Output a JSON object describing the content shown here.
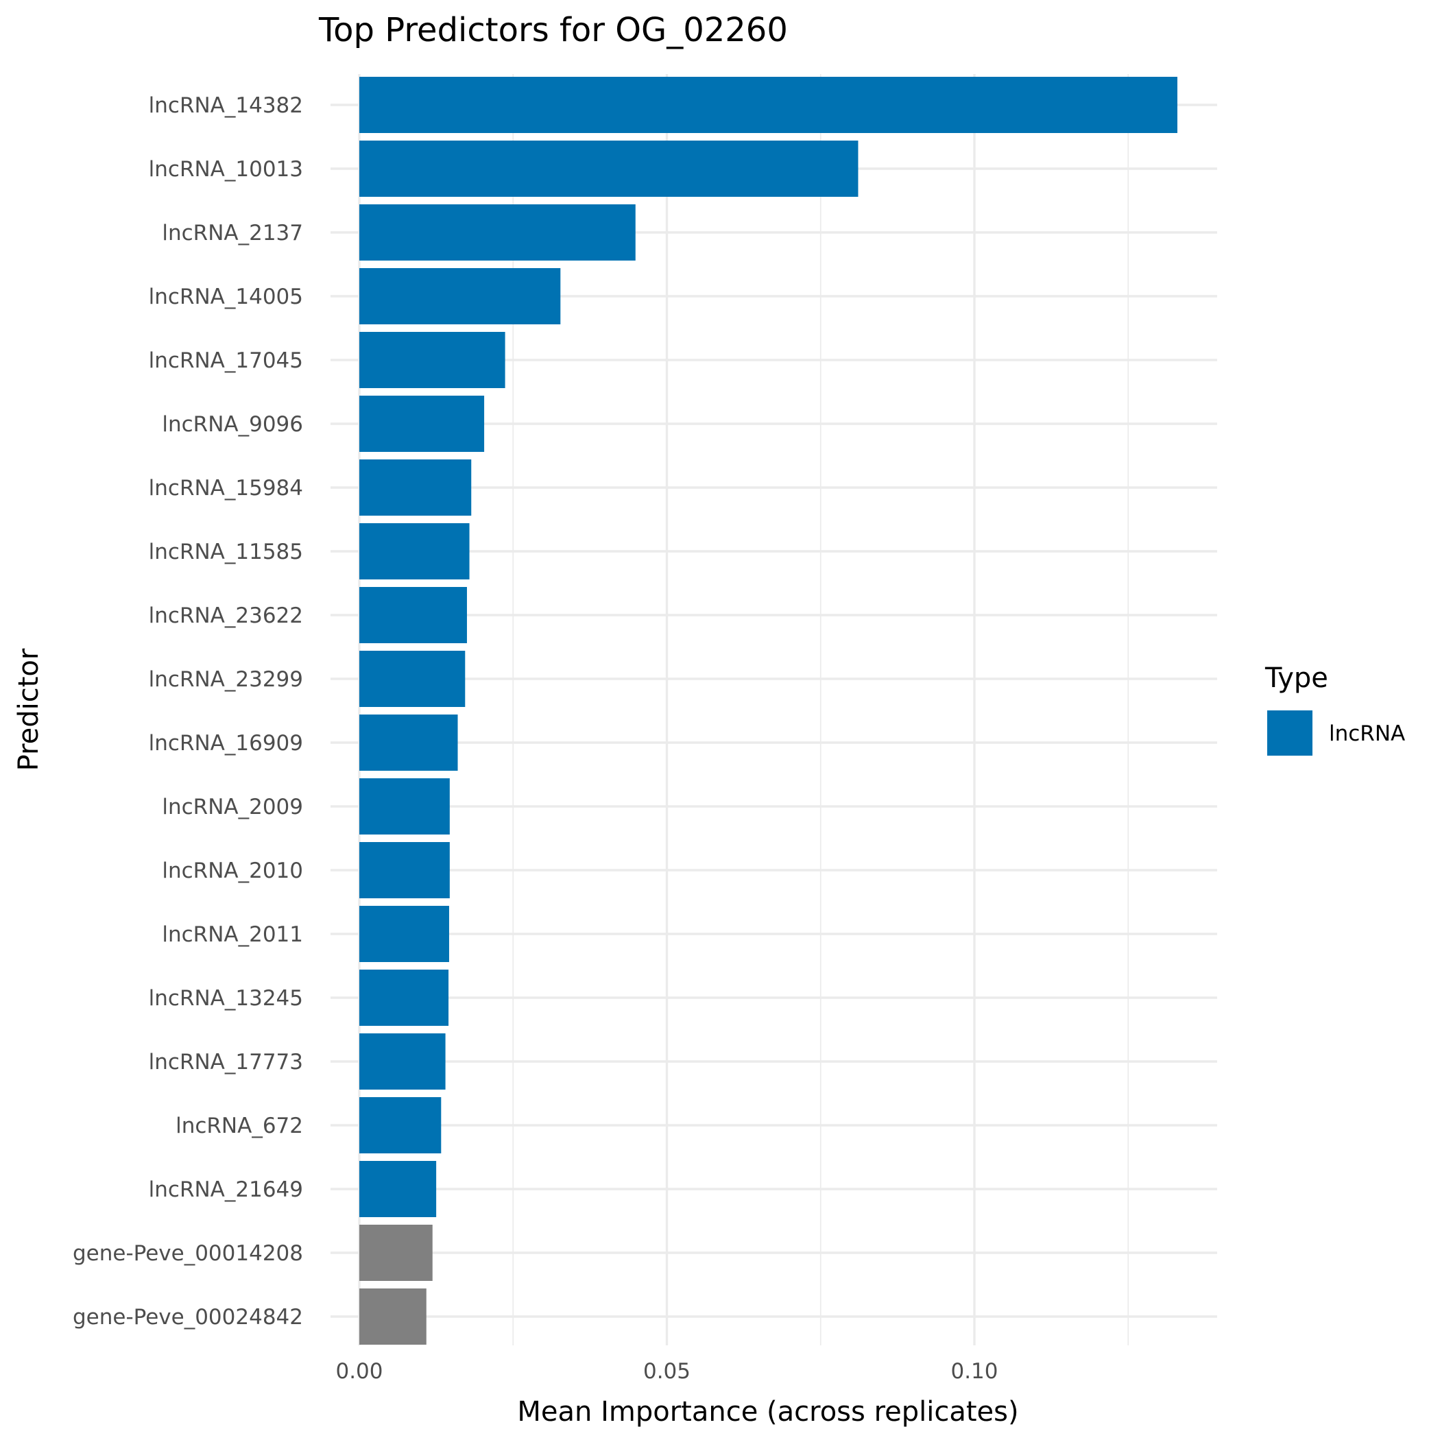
{
  "chart_data": {
    "type": "bar",
    "orientation": "horizontal",
    "title": "Top Predictors for OG_02260",
    "xlabel": "Mean Importance (across replicates)",
    "ylabel": "Predictor",
    "xlim": [
      0,
      0.14
    ],
    "x_ticks": [
      "0.00",
      "0.05",
      "0.10"
    ],
    "x_tick_values": [
      0,
      0.05,
      0.1
    ],
    "grid": true,
    "legend": {
      "title": "Type",
      "position": "right",
      "entries": [
        {
          "label": "lncRNA",
          "color": "#0072B2"
        }
      ]
    },
    "colors": {
      "lncRNA": "#0072B2",
      "gene": "#808080"
    },
    "categories": [
      "lncRNA_14382",
      "lncRNA_10013",
      "lncRNA_2137",
      "lncRNA_14005",
      "lncRNA_17045",
      "lncRNA_9096",
      "lncRNA_15984",
      "lncRNA_11585",
      "lncRNA_23622",
      "lncRNA_23299",
      "lncRNA_16909",
      "lncRNA_2009",
      "lncRNA_2010",
      "lncRNA_2011",
      "lncRNA_13245",
      "lncRNA_17773",
      "lncRNA_672",
      "lncRNA_21649",
      "gene-Peve_00014208",
      "gene-Peve_00024842"
    ],
    "values": [
      0.133,
      0.0811,
      0.0449,
      0.0327,
      0.0237,
      0.0203,
      0.0182,
      0.0179,
      0.0175,
      0.0172,
      0.016,
      0.0147,
      0.0147,
      0.0146,
      0.0145,
      0.014,
      0.0133,
      0.0125,
      0.0119,
      0.0109
    ],
    "types": [
      "lncRNA",
      "lncRNA",
      "lncRNA",
      "lncRNA",
      "lncRNA",
      "lncRNA",
      "lncRNA",
      "lncRNA",
      "lncRNA",
      "lncRNA",
      "lncRNA",
      "lncRNA",
      "lncRNA",
      "lncRNA",
      "lncRNA",
      "lncRNA",
      "lncRNA",
      "lncRNA",
      "gene",
      "gene"
    ]
  }
}
